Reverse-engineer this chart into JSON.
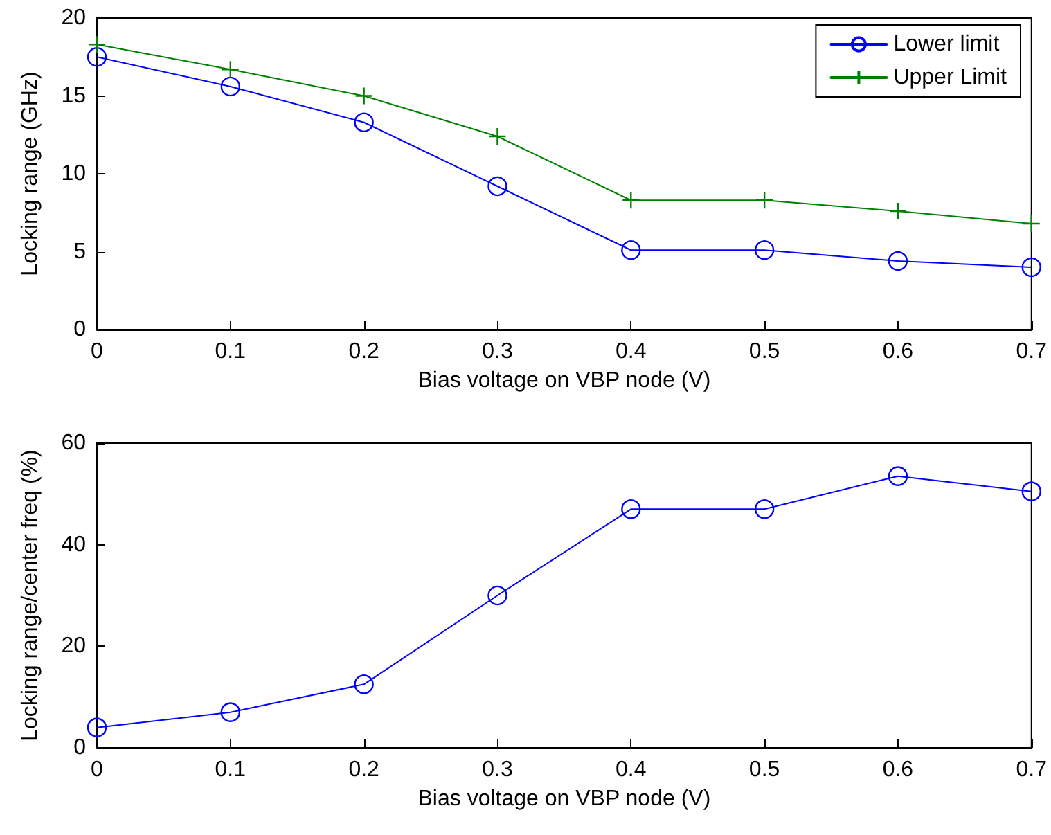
{
  "chart_data": [
    {
      "type": "line",
      "x": [
        0,
        0.1,
        0.2,
        0.3,
        0.4,
        0.5,
        0.6,
        0.7
      ],
      "xlabel": "Bias voltage on VBP node (V)",
      "ylabel": "Locking range (GHz)",
      "xlim": [
        0,
        0.7
      ],
      "xticks": [
        0,
        0.1,
        0.2,
        0.3,
        0.4,
        0.5,
        0.6,
        0.7
      ],
      "ylim": [
        0,
        20
      ],
      "yticks": [
        0,
        5,
        10,
        15,
        20
      ],
      "grid": false,
      "legend": "top right",
      "line_style": "solid",
      "series": [
        {
          "name": "Lower limit",
          "color": "#0000ff",
          "marker": "circle",
          "values": [
            17.5,
            15.6,
            13.3,
            9.2,
            5.1,
            5.1,
            4.4,
            4.0
          ]
        },
        {
          "name": "Upper Limit",
          "color": "#008000",
          "marker": "cross",
          "values": [
            18.3,
            16.7,
            15.0,
            12.4,
            8.3,
            8.3,
            7.6,
            6.8
          ]
        }
      ]
    },
    {
      "type": "line",
      "x": [
        0,
        0.1,
        0.2,
        0.3,
        0.4,
        0.5,
        0.6,
        0.7
      ],
      "xlabel": "Bias voltage on VBP node (V)",
      "ylabel": "Locking range/center freq (%)",
      "xlim": [
        0,
        0.7
      ],
      "xticks": [
        0,
        0.1,
        0.2,
        0.3,
        0.4,
        0.5,
        0.6,
        0.7
      ],
      "ylim": [
        0,
        60
      ],
      "yticks": [
        0,
        20,
        40,
        60
      ],
      "grid": false,
      "legend": false,
      "line_style": "solid",
      "series": [
        {
          "color": "#0000ff",
          "marker": "circle",
          "values": [
            4,
            7,
            12.5,
            30,
            47,
            47,
            53.5,
            50.5
          ]
        }
      ]
    }
  ]
}
